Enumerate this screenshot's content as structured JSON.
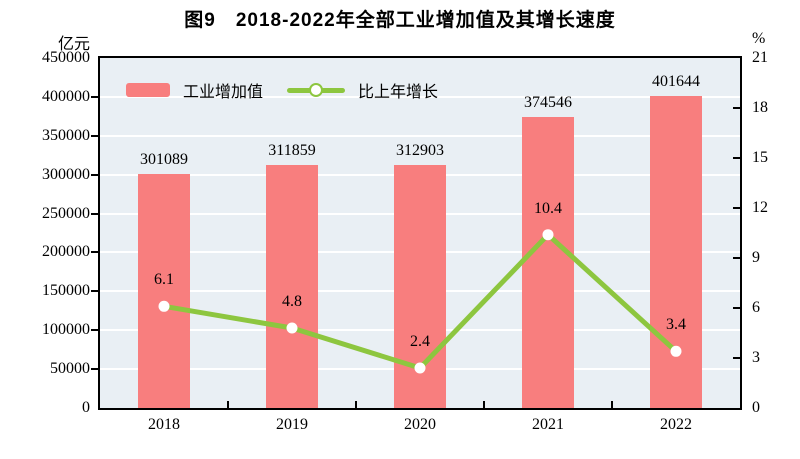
{
  "title": "图9　2018-2022年全部工业增加值及其增长速度",
  "left_axis": {
    "unit": "亿元",
    "ticks": [
      "450000",
      "400000",
      "350000",
      "300000",
      "250000",
      "200000",
      "150000",
      "100000",
      "50000",
      "0"
    ]
  },
  "right_axis": {
    "unit": "%",
    "ticks": [
      "21",
      "18",
      "15",
      "12",
      "9",
      "6",
      "3",
      "0"
    ]
  },
  "legend": {
    "items": [
      {
        "label": "工业增加值",
        "marker": "bar-swatch",
        "color": "#f87e7e"
      },
      {
        "label": "比上年增长",
        "marker": "line-marker",
        "color": "#8dc63f"
      }
    ]
  },
  "chart_data": {
    "type": "bar+line",
    "title": "图9　2018-2022年全部工业增加值及其增长速度",
    "categories": [
      "2018",
      "2019",
      "2020",
      "2021",
      "2022"
    ],
    "series": [
      {
        "name": "工业增加值",
        "type": "bar",
        "axis": "left",
        "unit": "亿元",
        "values": [
          301089,
          311859,
          312903,
          374546,
          401644
        ],
        "color": "#f87e7e"
      },
      {
        "name": "比上年增长",
        "type": "line",
        "axis": "right",
        "unit": "%",
        "values": [
          6.1,
          4.8,
          2.4,
          10.4,
          3.4
        ],
        "color": "#8dc63f",
        "marker": "white-circle"
      }
    ],
    "left_axis_range": [
      0,
      450000
    ],
    "left_axis_step": 50000,
    "right_axis_range": [
      0,
      21
    ],
    "right_axis_step": 3,
    "grid": true,
    "gridline_color": "#ffffff",
    "plot_background": "#e9eff4",
    "legend_position": "top-left-inside"
  },
  "colors": {
    "bar": "#f87e7e",
    "line": "#8dc63f",
    "plot_background": "#e9eff4",
    "gridline": "#ffffff",
    "axis": "#000000",
    "text": "#000000"
  }
}
